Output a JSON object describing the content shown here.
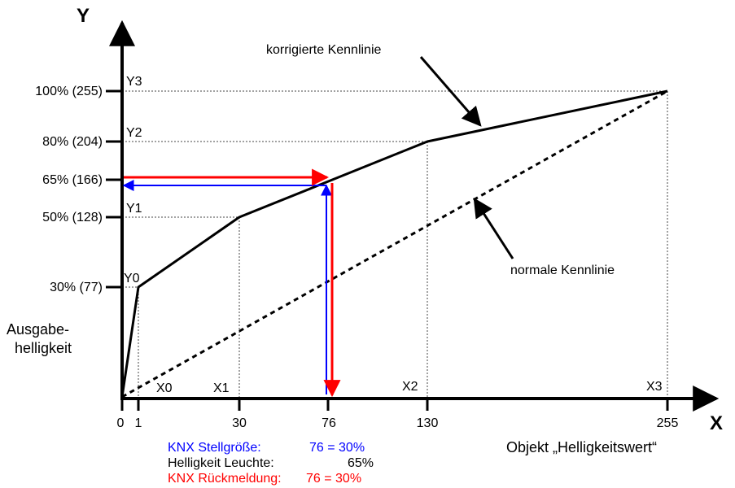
{
  "axes": {
    "y_title": "Y",
    "x_title": "X",
    "y_side_label": [
      "Ausgabe-",
      "helligkeit"
    ],
    "x_side_label": "Objekt „Helligkeitswert“"
  },
  "y_ticks": [
    "100% (255)",
    "80% (204)",
    "65% (166)",
    "50% (128)",
    "30% (77)"
  ],
  "y_points": [
    "Y3",
    "Y2",
    "Y1",
    "Y0"
  ],
  "x_points": [
    "X0",
    "X1",
    "X2",
    "X3"
  ],
  "x_ticks": [
    "0",
    "1",
    "30",
    "76",
    "130",
    "255"
  ],
  "curves": {
    "corrected_label": "korrigierte Kennlinie",
    "normal_label": "normale Kennlinie"
  },
  "legend": {
    "row1_left": "KNX Stellgröße:",
    "row1_right": "76 = 30%",
    "row2_left": "Helligkeit Leuchte:",
    "row2_right": "65%",
    "row3_left": "KNX Rückmeldung:",
    "row3_right": "76 = 30%"
  },
  "colors": {
    "blue": "#0000ff",
    "red": "#ff0000",
    "axis": "#000000"
  },
  "chart_data": {
    "type": "line",
    "x_domain": [
      0,
      255
    ],
    "y_domain_percent": [
      0,
      100
    ],
    "series": [
      {
        "name": "korrigierte Kennlinie",
        "points": [
          [
            0,
            0
          ],
          [
            1,
            30
          ],
          [
            30,
            50
          ],
          [
            130,
            80
          ],
          [
            255,
            100
          ]
        ]
      },
      {
        "name": "normale Kennlinie",
        "points": [
          [
            0,
            0
          ],
          [
            255,
            100
          ]
        ]
      }
    ],
    "example": {
      "x": 76,
      "y_percent": 65
    }
  }
}
